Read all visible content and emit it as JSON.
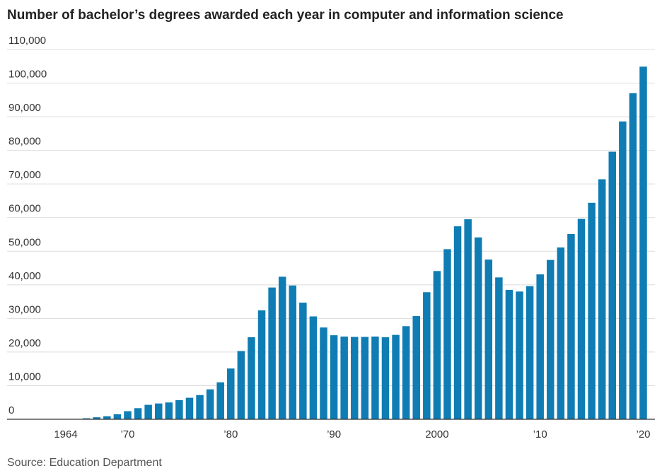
{
  "chart_data": {
    "type": "bar",
    "title": "Number of bachelor’s degrees awarded each year in computer and information science",
    "source": "Source: Education Department",
    "categories": [
      "1964",
      null,
      null,
      null,
      null,
      null,
      "’70",
      null,
      null,
      null,
      null,
      null,
      null,
      null,
      null,
      null,
      "’80",
      null,
      null,
      null,
      null,
      null,
      null,
      null,
      null,
      null,
      "’90",
      null,
      null,
      null,
      null,
      null,
      null,
      null,
      null,
      null,
      "2000",
      null,
      null,
      null,
      null,
      null,
      null,
      null,
      null,
      null,
      "’10",
      null,
      null,
      null,
      null,
      null,
      null,
      null,
      null,
      null,
      "’20"
    ],
    "values": [
      0,
      0,
      300,
      600,
      900,
      1500,
      2400,
      3300,
      4300,
      4700,
      5000,
      5700,
      6400,
      7200,
      8900,
      11000,
      15100,
      20300,
      24400,
      32400,
      39200,
      42400,
      39800,
      34700,
      30600,
      27300,
      25000,
      24600,
      24500,
      24500,
      24600,
      24400,
      25100,
      27700,
      30700,
      37800,
      44100,
      50600,
      57400,
      59500,
      54100,
      47500,
      42200,
      38500,
      38000,
      39600,
      43100,
      47400,
      51100,
      55100,
      59600,
      64400,
      71400,
      79600,
      88600,
      97000,
      104900
    ],
    "color": "#0f7db4",
    "ylim": [
      0,
      110000
    ],
    "yticks": [
      0,
      {
        "value": 10000,
        "label": "10,000"
      },
      {
        "value": 20000,
        "label": "20,000"
      },
      {
        "value": 30000,
        "label": "30,000"
      },
      {
        "value": 40000,
        "label": "40,000"
      },
      {
        "value": 50000,
        "label": "50,000"
      },
      {
        "value": 60000,
        "label": "60,000"
      },
      {
        "value": 70000,
        "label": "70,000"
      },
      {
        "value": 80000,
        "label": "80,000"
      },
      {
        "value": 90000,
        "label": "90,000"
      },
      {
        "value": 100000,
        "label": "100,000"
      },
      {
        "value": 110000,
        "label": "110,000"
      }
    ],
    "grid": true
  }
}
